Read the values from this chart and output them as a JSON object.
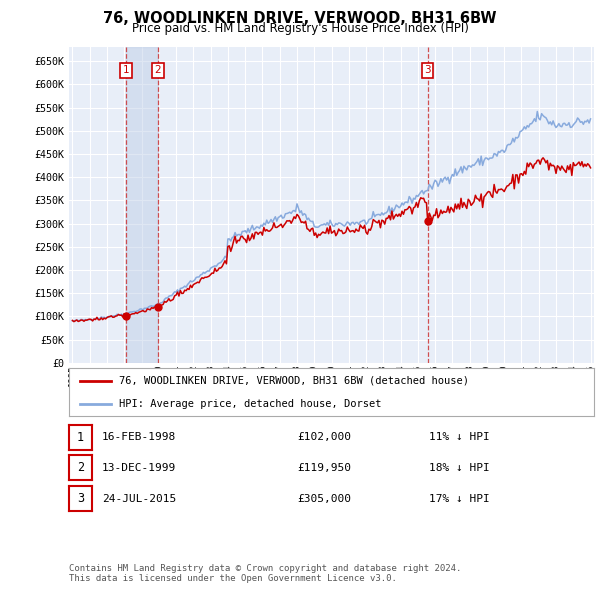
{
  "title": "76, WOODLINKEN DRIVE, VERWOOD, BH31 6BW",
  "subtitle": "Price paid vs. HM Land Registry's House Price Index (HPI)",
  "ylabel_ticks": [
    "£0",
    "£50K",
    "£100K",
    "£150K",
    "£200K",
    "£250K",
    "£300K",
    "£350K",
    "£400K",
    "£450K",
    "£500K",
    "£550K",
    "£600K",
    "£650K"
  ],
  "ytick_values": [
    0,
    50000,
    100000,
    150000,
    200000,
    250000,
    300000,
    350000,
    400000,
    450000,
    500000,
    550000,
    600000,
    650000
  ],
  "ylim": [
    0,
    680000
  ],
  "xlim_start": 1994.8,
  "xlim_end": 2025.2,
  "background_color": "#ffffff",
  "plot_bg_color": "#e8eef8",
  "grid_color": "#ffffff",
  "sale_color": "#cc0000",
  "hpi_color": "#88aadd",
  "transactions": [
    {
      "num": 1,
      "date_label": "16-FEB-1998",
      "date_x": 1998.12,
      "price": 102000,
      "label": "1"
    },
    {
      "num": 2,
      "date_label": "13-DEC-1999",
      "date_x": 1999.95,
      "price": 119950,
      "label": "2"
    },
    {
      "num": 3,
      "date_label": "24-JUL-2015",
      "date_x": 2015.56,
      "price": 305000,
      "label": "3"
    }
  ],
  "legend_entries": [
    {
      "label": "76, WOODLINKEN DRIVE, VERWOOD, BH31 6BW (detached house)",
      "color": "#cc0000"
    },
    {
      "label": "HPI: Average price, detached house, Dorset",
      "color": "#88aadd"
    }
  ],
  "table_rows": [
    {
      "num": "1",
      "date": "16-FEB-1998",
      "price": "£102,000",
      "pct": "11% ↓ HPI"
    },
    {
      "num": "2",
      "date": "13-DEC-1999",
      "price": "£119,950",
      "pct": "18% ↓ HPI"
    },
    {
      "num": "3",
      "date": "24-JUL-2015",
      "price": "£305,000",
      "pct": "17% ↓ HPI"
    }
  ],
  "footnote": "Contains HM Land Registry data © Crown copyright and database right 2024.\nThis data is licensed under the Open Government Licence v3.0.",
  "xtick_years": [
    1995,
    1996,
    1997,
    1998,
    1999,
    2000,
    2001,
    2002,
    2003,
    2004,
    2005,
    2006,
    2007,
    2008,
    2009,
    2010,
    2011,
    2012,
    2013,
    2014,
    2015,
    2016,
    2017,
    2018,
    2019,
    2020,
    2021,
    2022,
    2023,
    2024,
    2025
  ]
}
